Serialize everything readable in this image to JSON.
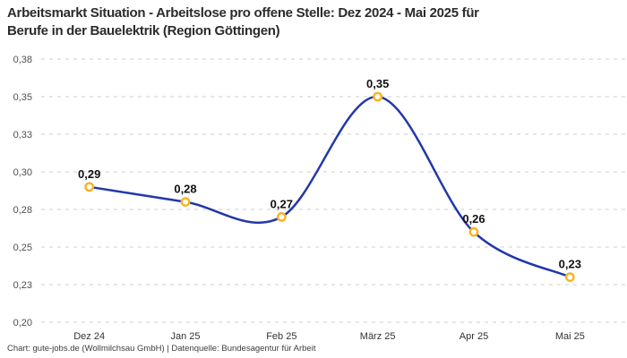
{
  "title_lines": [
    "Arbeitsmarkt Situation - Arbeitslose pro offene Stelle: Dez 2024 - Mai 2025 für",
    "Berufe in der Bauelektrik (Region Göttingen)"
  ],
  "footer": "Chart: gute-jobs.de (Wollmilchsau GmbH) | Datenquelle: Bundesagentur für Arbeit",
  "chart_data": {
    "type": "line",
    "title": "Arbeitsmarkt Situation - Arbeitslose pro offene Stelle: Dez 2024 - Mai 2025 für Berufe in der Bauelektrik (Region Göttingen)",
    "categories": [
      "Dez 24",
      "Jan 25",
      "Feb 25",
      "März 25",
      "Apr 25",
      "Mai 25"
    ],
    "values": [
      0.29,
      0.28,
      0.27,
      0.35,
      0.26,
      0.23
    ],
    "point_labels": [
      "0,29",
      "0,28",
      "0,27",
      "0,35",
      "0,26",
      "0,23"
    ],
    "xlabel": "",
    "ylabel": "",
    "ylim": [
      0.2,
      0.375
    ],
    "ytick_values": [
      0.2,
      0.225,
      0.25,
      0.275,
      0.3,
      0.325,
      0.35,
      0.375
    ],
    "ytick_labels": [
      "0,20",
      "0,23",
      "0,25",
      "0,28",
      "0,30",
      "0,33",
      "0,35",
      "0,38"
    ],
    "grid": "horizontal-dashed",
    "legend": "none",
    "line_style": "smooth",
    "colors": {
      "line": "#2238a8",
      "marker_ring": "#f8b31f",
      "marker_fill": "#ffffff",
      "grid": "#cccccc",
      "ytick_text": "#4f4f4f",
      "xtick_text": "#333333",
      "point_label_text": "#111111",
      "title_text": "#2b2b2b",
      "footer_text": "#3d3d3d"
    }
  }
}
